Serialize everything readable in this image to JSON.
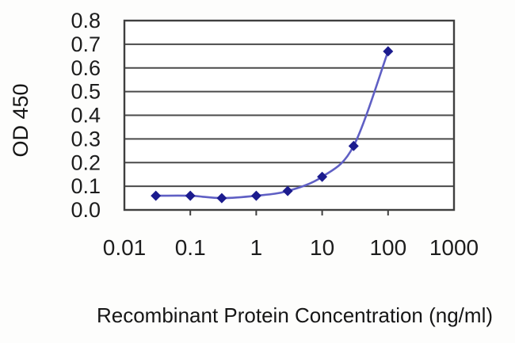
{
  "figure": {
    "description": "ELISA standard-curve line chart",
    "background": "#ffffff"
  },
  "chart_data": {
    "type": "line",
    "title": "",
    "xlabel": "Recombinant Protein Concentration (ng/ml)",
    "ylabel": "OD 450",
    "x_scale": "log",
    "xlim": [
      0.01,
      1000
    ],
    "ylim": [
      0,
      0.8
    ],
    "x": [
      0.03,
      0.1,
      0.3,
      1,
      3,
      10,
      30,
      100
    ],
    "y": [
      0.06,
      0.06,
      0.05,
      0.06,
      0.08,
      0.14,
      0.27,
      0.67
    ],
    "series": [
      {
        "name": "OD 450",
        "x": [
          0.03,
          0.1,
          0.3,
          1,
          3,
          10,
          30,
          100
        ],
        "values": [
          0.06,
          0.06,
          0.05,
          0.06,
          0.08,
          0.14,
          0.27,
          0.67
        ]
      }
    ],
    "x_ticks": [
      0.01,
      0.1,
      1,
      10,
      100,
      1000
    ],
    "x_tick_labels": [
      "0.01",
      "0.1",
      "1",
      "10",
      "100",
      "1000"
    ],
    "x_ticks_marked": [
      0.1,
      1,
      10,
      100
    ],
    "y_ticks": [
      0,
      0.1,
      0.2,
      0.3,
      0.4,
      0.5,
      0.6,
      0.7,
      0.8
    ],
    "y_tick_labels": [
      "0.0",
      "0.1",
      "0.2",
      "0.3",
      "0.4",
      "0.5",
      "0.6",
      "0.7",
      "0.8"
    ],
    "grid": "horizontal",
    "legend": "none",
    "marker": "diamond",
    "line_smoothing": true,
    "colors": {
      "line": "#5f5fc4",
      "marker": "#1b1b8e",
      "grid": "#4a4a4a",
      "border": "#3f3f3f",
      "text": "#1d1d1d",
      "plot_background": "#ffffff"
    }
  }
}
